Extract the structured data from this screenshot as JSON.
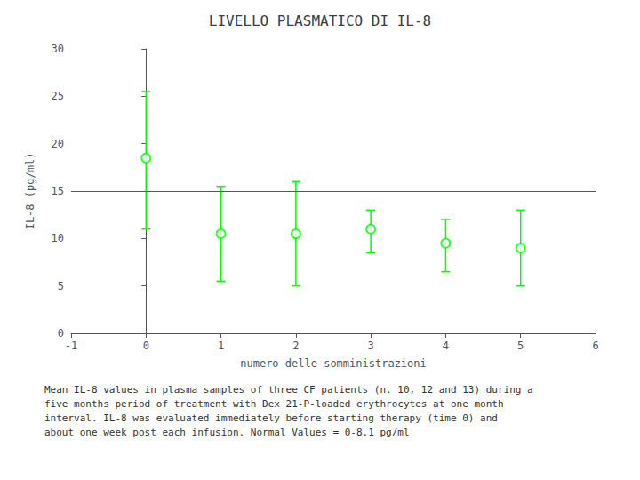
{
  "chart_data": {
    "type": "scatter",
    "title": "LIVELLO PLASMATICO DI IL-8",
    "xlabel": "numero delle somministrazioni",
    "ylabel": "IL-8 (pg/ml)",
    "x": [
      0,
      1,
      2,
      3,
      4,
      5
    ],
    "values": [
      18.5,
      10.5,
      10.5,
      11.0,
      9.5,
      9.0
    ],
    "lower": [
      11.0,
      5.5,
      5.0,
      8.5,
      6.5,
      5.0
    ],
    "upper": [
      25.5,
      15.5,
      16.0,
      13.0,
      12.0,
      13.0
    ],
    "color": "#00FF00",
    "marker": "circle",
    "xlim": [
      -1,
      6
    ],
    "ylim": [
      0,
      30
    ],
    "xticks": [
      -1,
      0,
      1,
      2,
      3,
      4,
      5,
      6
    ],
    "yticks": [
      0,
      5,
      10,
      15,
      20,
      25,
      30
    ],
    "grid": false,
    "reference_line": {
      "y": 15,
      "color": "#3355cc"
    },
    "annotation": "Mean IL-8 values in plasma samples of three CF patients (n. 10, 12 and 13) during a\nfive months period of treatment with Dex 21-P-loaded erythrocytes at one month\ninterval. IL-8 was evaluated immediately before starting therapy (time 0) and\nabout one week post each infusion. Normal Values = 0-8.1 pg/ml"
  }
}
